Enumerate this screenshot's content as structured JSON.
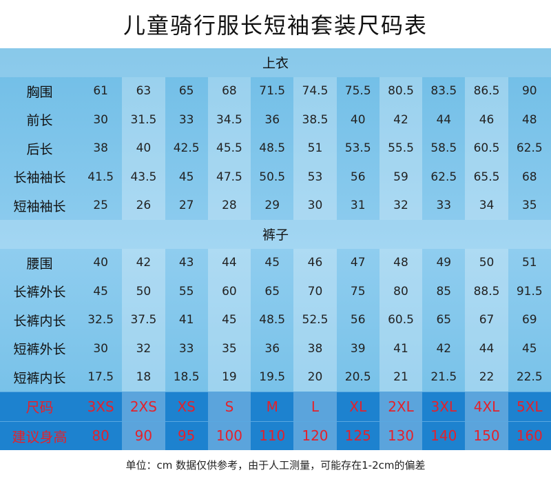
{
  "header": {
    "title": "儿童骑行服长短袖套装尺码表"
  },
  "sections": [
    {
      "title": "上衣",
      "rows": [
        {
          "label": "胸围",
          "values": [
            61,
            63,
            65,
            68,
            71.5,
            74.5,
            75.5,
            80.5,
            83.5,
            86.5,
            90
          ]
        },
        {
          "label": "前长",
          "values": [
            30,
            31.5,
            33,
            34.5,
            36,
            38.5,
            40,
            42,
            44,
            46,
            48
          ]
        },
        {
          "label": "后长",
          "values": [
            38,
            40,
            42.5,
            45.5,
            48.5,
            51,
            53.5,
            55.5,
            58.5,
            60.5,
            62.5
          ]
        },
        {
          "label": "长袖袖长",
          "values": [
            41.5,
            43.5,
            45,
            47.5,
            50.5,
            53,
            56,
            59,
            62.5,
            65.5,
            68
          ]
        },
        {
          "label": "短袖袖长",
          "values": [
            25,
            26,
            27,
            28,
            29,
            30,
            31,
            32,
            33,
            34,
            35
          ]
        }
      ]
    },
    {
      "title": "裤子",
      "rows": [
        {
          "label": "腰围",
          "values": [
            40,
            42,
            43,
            44,
            45,
            46,
            47,
            48,
            49,
            50,
            51
          ]
        },
        {
          "label": "长裤外长",
          "values": [
            45,
            50,
            55,
            60,
            65,
            70,
            75,
            80,
            85,
            88.5,
            91.5
          ]
        },
        {
          "label": "长裤内长",
          "values": [
            32.5,
            37.5,
            41,
            45,
            48.5,
            52.5,
            56,
            60.5,
            65,
            67,
            69
          ]
        },
        {
          "label": "短裤外长",
          "values": [
            30,
            32,
            33,
            35,
            36,
            38,
            39,
            41,
            42,
            44,
            45
          ]
        },
        {
          "label": "短裤内长",
          "values": [
            17.5,
            18,
            18.5,
            19,
            19.5,
            20,
            20.5,
            21,
            21.5,
            22,
            22.5
          ]
        }
      ]
    }
  ],
  "size_rows": [
    {
      "label": "尺码",
      "values": [
        "3XS",
        "2XS",
        "XS",
        "S",
        "M",
        "L",
        "XL",
        "2XL",
        "3XL",
        "4XL",
        "5XL"
      ]
    },
    {
      "label": "建议身高",
      "values": [
        80,
        90,
        95,
        100,
        110,
        120,
        125,
        130,
        140,
        150,
        160
      ]
    }
  ],
  "footer": {
    "note": "单位：cm 数据仅供参考，由于人工测量，可能存在1-2cm的偏差"
  }
}
